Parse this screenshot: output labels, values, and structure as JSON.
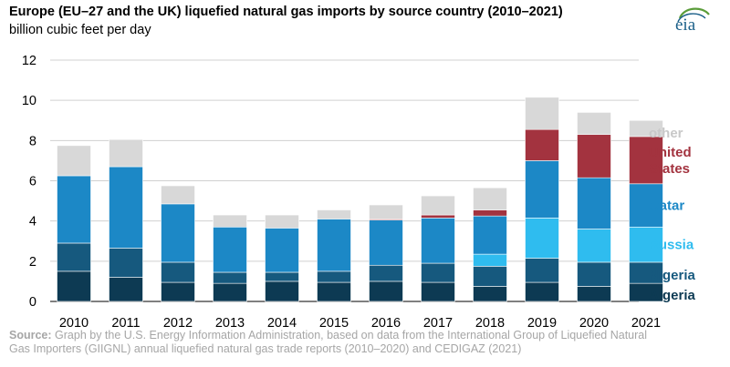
{
  "header": {
    "title": "Europe (EU–27 and the UK) liquefied natural gas imports by source country (2010–2021)",
    "subtitle": "billion cubic feet per day",
    "logo_text": "eia"
  },
  "source": {
    "label": "Source:",
    "text": "Graph by the U.S. Energy Information Administration, based on data from the International Group of Liquefied Natural Gas Importers (GIIGNL) annual liquefied natural gas trade reports (2010–2020) and CEDIGAZ (2021)"
  },
  "chart_data": {
    "type": "bar",
    "stacked": true,
    "categories": [
      "2010",
      "2011",
      "2012",
      "2013",
      "2014",
      "2015",
      "2016",
      "2017",
      "2018",
      "2019",
      "2020",
      "2021"
    ],
    "ylim": [
      0,
      12
    ],
    "yticks": [
      "0",
      "2",
      "4",
      "6",
      "8",
      "10",
      "12"
    ],
    "grid": true,
    "legend_placement": "right, labels aligned with stacked segments",
    "series": [
      {
        "name": "Algeria",
        "label_lines": [
          "Algeria"
        ],
        "color": "#0d3a53",
        "values": [
          1.5,
          1.2,
          0.95,
          0.9,
          1.0,
          0.95,
          1.0,
          0.95,
          0.75,
          0.95,
          0.75,
          0.9
        ]
      },
      {
        "name": "Nigeria",
        "label_lines": [
          "Nigeria"
        ],
        "color": "#16597e",
        "values": [
          1.4,
          1.45,
          1.0,
          0.55,
          0.45,
          0.55,
          0.8,
          0.95,
          1.0,
          1.2,
          1.2,
          1.05
        ]
      },
      {
        "name": "Russia",
        "label_lines": [
          "Russia"
        ],
        "color": "#2fbcef",
        "values": [
          0,
          0,
          0,
          0,
          0,
          0,
          0,
          0,
          0.6,
          2.0,
          1.65,
          1.75
        ]
      },
      {
        "name": "Qatar",
        "label_lines": [
          "Qatar"
        ],
        "color": "#1c88c6",
        "values": [
          3.35,
          4.05,
          2.9,
          2.25,
          2.2,
          2.6,
          2.25,
          2.25,
          1.9,
          2.85,
          2.55,
          2.15
        ]
      },
      {
        "name": "United States",
        "label_lines": [
          "United",
          "States"
        ],
        "color": "#a3333f",
        "values": [
          0,
          0,
          0,
          0,
          0,
          0,
          0.05,
          0.15,
          0.3,
          1.55,
          2.15,
          2.35
        ]
      },
      {
        "name": "other",
        "label_lines": [
          "other"
        ],
        "color": "#d8d8d8",
        "values": [
          1.5,
          1.35,
          0.9,
          0.6,
          0.65,
          0.45,
          0.7,
          0.95,
          1.1,
          1.6,
          1.1,
          0.8
        ]
      }
    ]
  }
}
